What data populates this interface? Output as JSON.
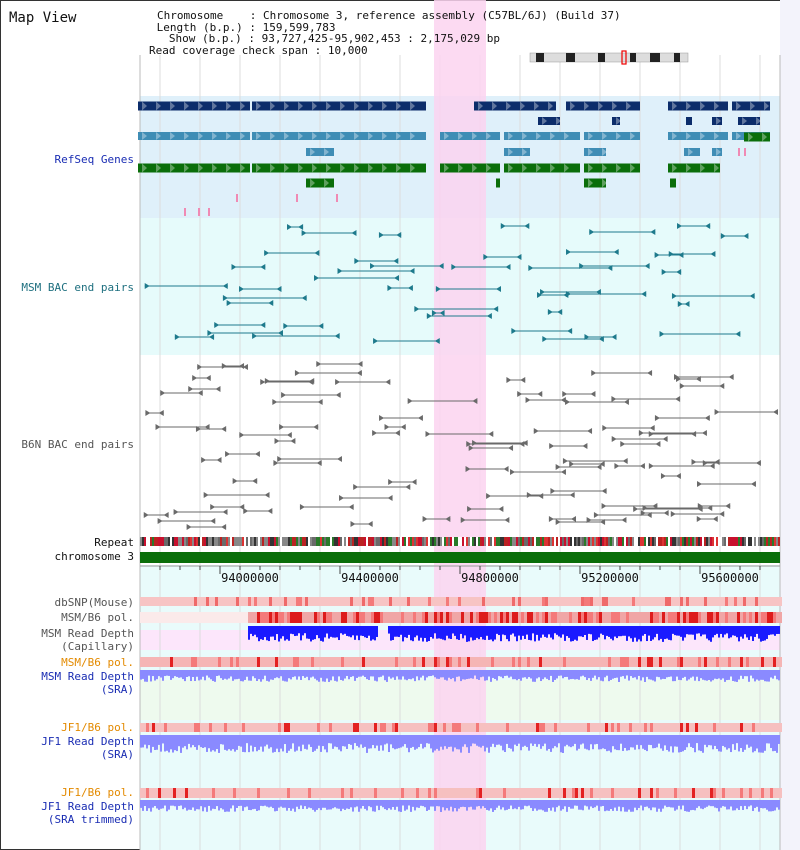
{
  "app_title": "Map View",
  "header": {
    "chromosome_label": "Chromosome",
    "chromosome_value": "Chromosome 3, reference assembly (C57BL/6J) (Build 37)",
    "length_label": "Length (b.p.)",
    "length_value": "159,599,783",
    "show_label": "Show (b.p.)",
    "show_value": "93,727,425-95,902,453 : 2,175,029 bp",
    "coverage_label": "Read coverage check span",
    "coverage_value": "10,000"
  },
  "tracks": {
    "refseq": "RefSeq Genes",
    "msm_bac": "MSM BAC end pairs",
    "b6n_bac": "B6N BAC end pairs",
    "repeat": "Repeat",
    "chromosome": "chromosome 3",
    "dbsnp": "dbSNP(Mouse)",
    "msm_b6_pol_1": "MSM/B6 pol.",
    "msm_read_depth_cap": "MSM Read Depth\n(Capillary)",
    "msm_b6_pol_2": "MSM/B6 pol.",
    "msm_read_depth_sra": "MSM Read Depth\n(SRA)",
    "jf1_b6_pol_1": "JF1/B6 pol.",
    "jf1_read_depth_sra": "JF1 Read Depth\n(SRA)",
    "jf1_b6_pol_2": "JF1/B6 pol.",
    "jf1_read_depth_trim": "JF1 Read Depth\n(SRA trimmed)"
  },
  "axis": {
    "ticks": [
      "94000000",
      "94400000",
      "94800000",
      "95200000",
      "95600000"
    ]
  },
  "colors": {
    "refseq_bg": "#dff0fa",
    "msm_bg": "#e6fbfb",
    "highlight": "#fbd3f0",
    "gene_dark": "#0c2d6b",
    "gene_mid": "#3f8db5",
    "gene_green": "#0a6e0a",
    "msm_pair": "#1e7a8c",
    "b6n_pair": "#6a6a6a",
    "depth_blue": "#1a1aff",
    "depth_light": "#8a8aff",
    "pol_red": "#e8322e",
    "pol_pink": "#f6b0b0",
    "label_blue": "#1a2db3",
    "label_teal": "#1e6f7f",
    "label_orange": "#e38a00"
  }
}
